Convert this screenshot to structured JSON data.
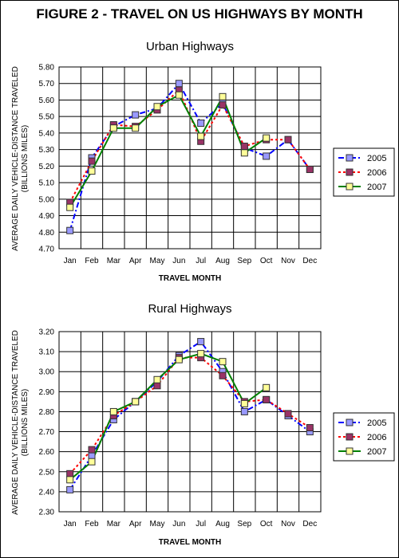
{
  "figure_title": "FIGURE 2 - TRAVEL ON US HIGHWAYS BY MONTH",
  "colors": {
    "2005": "#0000ff",
    "2006": "#ff0000",
    "2007": "#008000",
    "fill_2005": "#9999ff",
    "fill_2006": "#993366",
    "fill_2007": "#ffff99"
  },
  "chart_data": [
    {
      "type": "line",
      "title": "Urban Highways",
      "xlabel": "TRAVEL MONTH",
      "ylabel": [
        "AVERAGE DAILY VEHICLE-DISTANCE TRAVELED",
        "(BILLIONS MILES)"
      ],
      "ylim": [
        4.7,
        5.8
      ],
      "yticks": [
        "4.70",
        "4.80",
        "4.90",
        "5.00",
        "5.10",
        "5.20",
        "5.30",
        "5.40",
        "5.50",
        "5.60",
        "5.70",
        "5.80"
      ],
      "categories": [
        "Jan",
        "Feb",
        "Mar",
        "Apr",
        "May",
        "Jun",
        "Jul",
        "Aug",
        "Sep",
        "Oct",
        "Nov",
        "Dec"
      ],
      "grid": true,
      "legend": "right",
      "series": [
        {
          "name": "2005",
          "values": [
            4.81,
            5.25,
            5.44,
            5.51,
            5.55,
            5.7,
            5.46,
            5.58,
            5.31,
            5.26,
            5.36,
            5.18
          ]
        },
        {
          "name": "2006",
          "values": [
            4.98,
            5.23,
            5.45,
            5.44,
            5.54,
            5.66,
            5.35,
            5.57,
            5.32,
            5.36,
            5.36,
            5.18
          ]
        },
        {
          "name": "2007",
          "values": [
            4.95,
            5.17,
            5.43,
            5.43,
            5.56,
            5.63,
            5.38,
            5.62,
            5.28,
            5.37,
            null,
            null
          ]
        }
      ]
    },
    {
      "type": "line",
      "title": "Rural Highways",
      "xlabel": "TRAVEL MONTH",
      "ylabel": [
        "AVERAGE DAILY VEHICLE-DISTANCE TRAVELED",
        "(BILLIONS MILES)"
      ],
      "ylim": [
        2.3,
        3.2
      ],
      "yticks": [
        "2.30",
        "2.40",
        "2.50",
        "2.60",
        "2.70",
        "2.80",
        "2.90",
        "3.00",
        "3.10",
        "3.20"
      ],
      "categories": [
        "Jan",
        "Feb",
        "Mar",
        "Apr",
        "May",
        "Jun",
        "Jul",
        "Aug",
        "Sep",
        "Oct",
        "Nov",
        "Dec"
      ],
      "grid": true,
      "legend": "right",
      "series": [
        {
          "name": "2005",
          "values": [
            2.41,
            2.58,
            2.76,
            2.85,
            2.95,
            3.08,
            3.15,
            3.0,
            2.8,
            2.86,
            2.78,
            2.7
          ]
        },
        {
          "name": "2006",
          "values": [
            2.49,
            2.61,
            2.78,
            2.85,
            2.93,
            3.07,
            3.07,
            2.98,
            2.85,
            2.86,
            2.79,
            2.72
          ]
        },
        {
          "name": "2007",
          "values": [
            2.46,
            2.55,
            2.8,
            2.85,
            2.96,
            3.06,
            3.09,
            3.05,
            2.84,
            2.92,
            null,
            null
          ]
        }
      ]
    }
  ]
}
